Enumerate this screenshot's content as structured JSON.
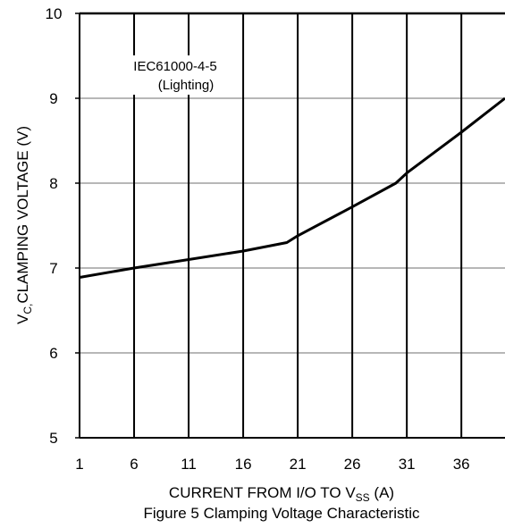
{
  "chart_data": {
    "type": "line",
    "title": "Figure 5 Clamping Voltage Characteristic",
    "xlabel": "CURRENT FROM I/O TO V",
    "xlabel_sub": "SS",
    "xlabel_suffix": " (A)",
    "ylabel": "V",
    "ylabel_sub": "C,",
    "ylabel_suffix": "CLAMPING VOLTAGE (V)",
    "xlim": [
      1,
      40
    ],
    "ylim": [
      5,
      10
    ],
    "xticks": [
      "1",
      "6",
      "11",
      "16",
      "21",
      "26",
      "31",
      "36"
    ],
    "yticks": [
      "5",
      "6",
      "7",
      "8",
      "9",
      "10"
    ],
    "annotation": [
      "IEC61000-4-5",
      "(Lighting)"
    ],
    "grid": true,
    "series": [
      {
        "x": [
          1,
          6,
          11,
          16,
          20,
          21,
          26,
          30,
          31,
          36,
          40
        ],
        "y": [
          6.89,
          7.0,
          7.1,
          7.2,
          7.3,
          7.38,
          7.72,
          8.0,
          8.12,
          8.6,
          9.0
        ]
      }
    ]
  }
}
